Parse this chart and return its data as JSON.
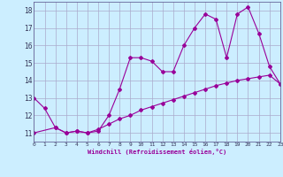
{
  "xlabel": "Windchill (Refroidissement éolien,°C)",
  "bg_color": "#cceeff",
  "grid_color": "#aaaacc",
  "line_color": "#990099",
  "line1_x": [
    0,
    1,
    2,
    3,
    4,
    5,
    6,
    7,
    8,
    9,
    10,
    11,
    12,
    13,
    14,
    15,
    16,
    17,
    18,
    19,
    20,
    21,
    22,
    23
  ],
  "line1_y": [
    13.0,
    12.4,
    11.3,
    11.0,
    11.1,
    11.0,
    11.1,
    12.0,
    13.5,
    15.3,
    15.3,
    15.1,
    14.5,
    14.5,
    16.0,
    17.0,
    17.8,
    17.5,
    15.3,
    17.8,
    18.2,
    16.7,
    14.8,
    13.8
  ],
  "line2_x": [
    0,
    2,
    3,
    4,
    5,
    6,
    7,
    8,
    9,
    10,
    11,
    12,
    13,
    14,
    15,
    16,
    17,
    18,
    19,
    20,
    21,
    22,
    23
  ],
  "line2_y": [
    11.0,
    11.3,
    11.0,
    11.1,
    11.0,
    11.2,
    11.5,
    11.8,
    12.0,
    12.3,
    12.5,
    12.7,
    12.9,
    13.1,
    13.3,
    13.5,
    13.7,
    13.85,
    14.0,
    14.1,
    14.2,
    14.3,
    13.8
  ],
  "xlim": [
    0,
    23
  ],
  "ylim": [
    10.5,
    18.5
  ],
  "yticks": [
    11,
    12,
    13,
    14,
    15,
    16,
    17,
    18
  ],
  "xticks": [
    0,
    1,
    2,
    3,
    4,
    5,
    6,
    7,
    8,
    9,
    10,
    11,
    12,
    13,
    14,
    15,
    16,
    17,
    18,
    19,
    20,
    21,
    22,
    23
  ]
}
